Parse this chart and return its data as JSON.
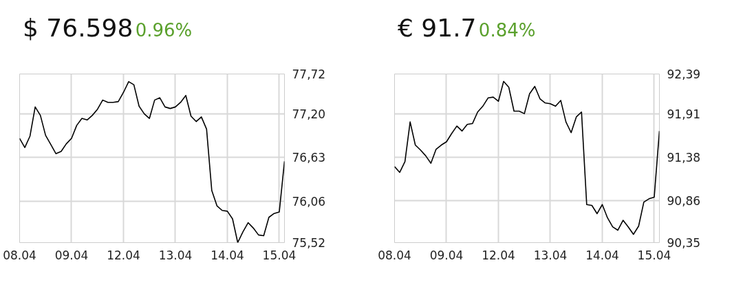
{
  "chart_data": [
    {
      "type": "line",
      "title": "$ 76.598",
      "subtitle": "0.96%",
      "color": "#000000",
      "grid": true,
      "categories": [
        "08.04",
        null,
        null,
        null,
        null,
        null,
        null,
        null,
        null,
        null,
        "09.04",
        null,
        null,
        null,
        null,
        null,
        null,
        null,
        null,
        null,
        "12.04",
        null,
        null,
        null,
        null,
        null,
        null,
        null,
        null,
        null,
        "13.04",
        null,
        null,
        null,
        null,
        null,
        null,
        null,
        null,
        null,
        "14.04",
        null,
        null,
        null,
        null,
        null,
        null,
        null,
        null,
        null,
        "15.04",
        null
      ],
      "ylim": [
        75.52,
        77.72
      ],
      "yticks": [
        {
          "value": 75.52,
          "label": "75,52"
        },
        {
          "value": 76.06,
          "label": "76,06"
        },
        {
          "value": 76.63,
          "label": "76,63"
        },
        {
          "value": 77.2,
          "label": "77,20"
        },
        {
          "value": 77.72,
          "label": "77,72"
        }
      ],
      "values": [
        76.88,
        76.76,
        76.91,
        77.29,
        77.18,
        76.92,
        76.8,
        76.68,
        76.71,
        76.81,
        76.88,
        77.05,
        77.14,
        77.12,
        77.18,
        77.26,
        77.38,
        77.35,
        77.35,
        77.36,
        77.48,
        77.62,
        77.58,
        77.3,
        77.2,
        77.14,
        77.38,
        77.41,
        77.29,
        77.27,
        77.29,
        77.35,
        77.44,
        77.17,
        77.1,
        77.16,
        77.0,
        76.2,
        76.0,
        75.94,
        75.93,
        75.83,
        75.52,
        75.66,
        75.78,
        75.71,
        75.62,
        75.61,
        75.85,
        75.9,
        75.92,
        76.58
      ]
    },
    {
      "type": "line",
      "title": "€ 91.7",
      "subtitle": "0.84%",
      "color": "#000000",
      "grid": true,
      "categories": [
        "08.04",
        null,
        null,
        null,
        null,
        null,
        null,
        null,
        null,
        null,
        "09.04",
        null,
        null,
        null,
        null,
        null,
        null,
        null,
        null,
        null,
        "12.04",
        null,
        null,
        null,
        null,
        null,
        null,
        null,
        null,
        null,
        "13.04",
        null,
        null,
        null,
        null,
        null,
        null,
        null,
        null,
        null,
        "14.04",
        null,
        null,
        null,
        null,
        null,
        null,
        null,
        null,
        null,
        "15.04",
        null
      ],
      "ylim": [
        90.35,
        92.39
      ],
      "yticks": [
        {
          "value": 90.35,
          "label": "90,35"
        },
        {
          "value": 90.86,
          "label": "90,86"
        },
        {
          "value": 91.38,
          "label": "91,38"
        },
        {
          "value": 91.91,
          "label": "91,91"
        },
        {
          "value": 92.39,
          "label": "92,39"
        }
      ],
      "values": [
        91.27,
        91.2,
        91.33,
        91.81,
        91.53,
        91.47,
        91.4,
        91.31,
        91.48,
        91.53,
        91.57,
        91.67,
        91.76,
        91.7,
        91.78,
        91.79,
        91.93,
        92.0,
        92.1,
        92.11,
        92.06,
        92.3,
        92.23,
        91.94,
        91.94,
        91.91,
        92.15,
        92.24,
        92.09,
        92.04,
        92.03,
        92.0,
        92.07,
        91.81,
        91.68,
        91.87,
        91.93,
        90.81,
        90.8,
        90.7,
        90.81,
        90.65,
        90.54,
        90.5,
        90.62,
        90.54,
        90.45,
        90.55,
        90.84,
        90.88,
        90.9,
        91.7
      ]
    }
  ]
}
